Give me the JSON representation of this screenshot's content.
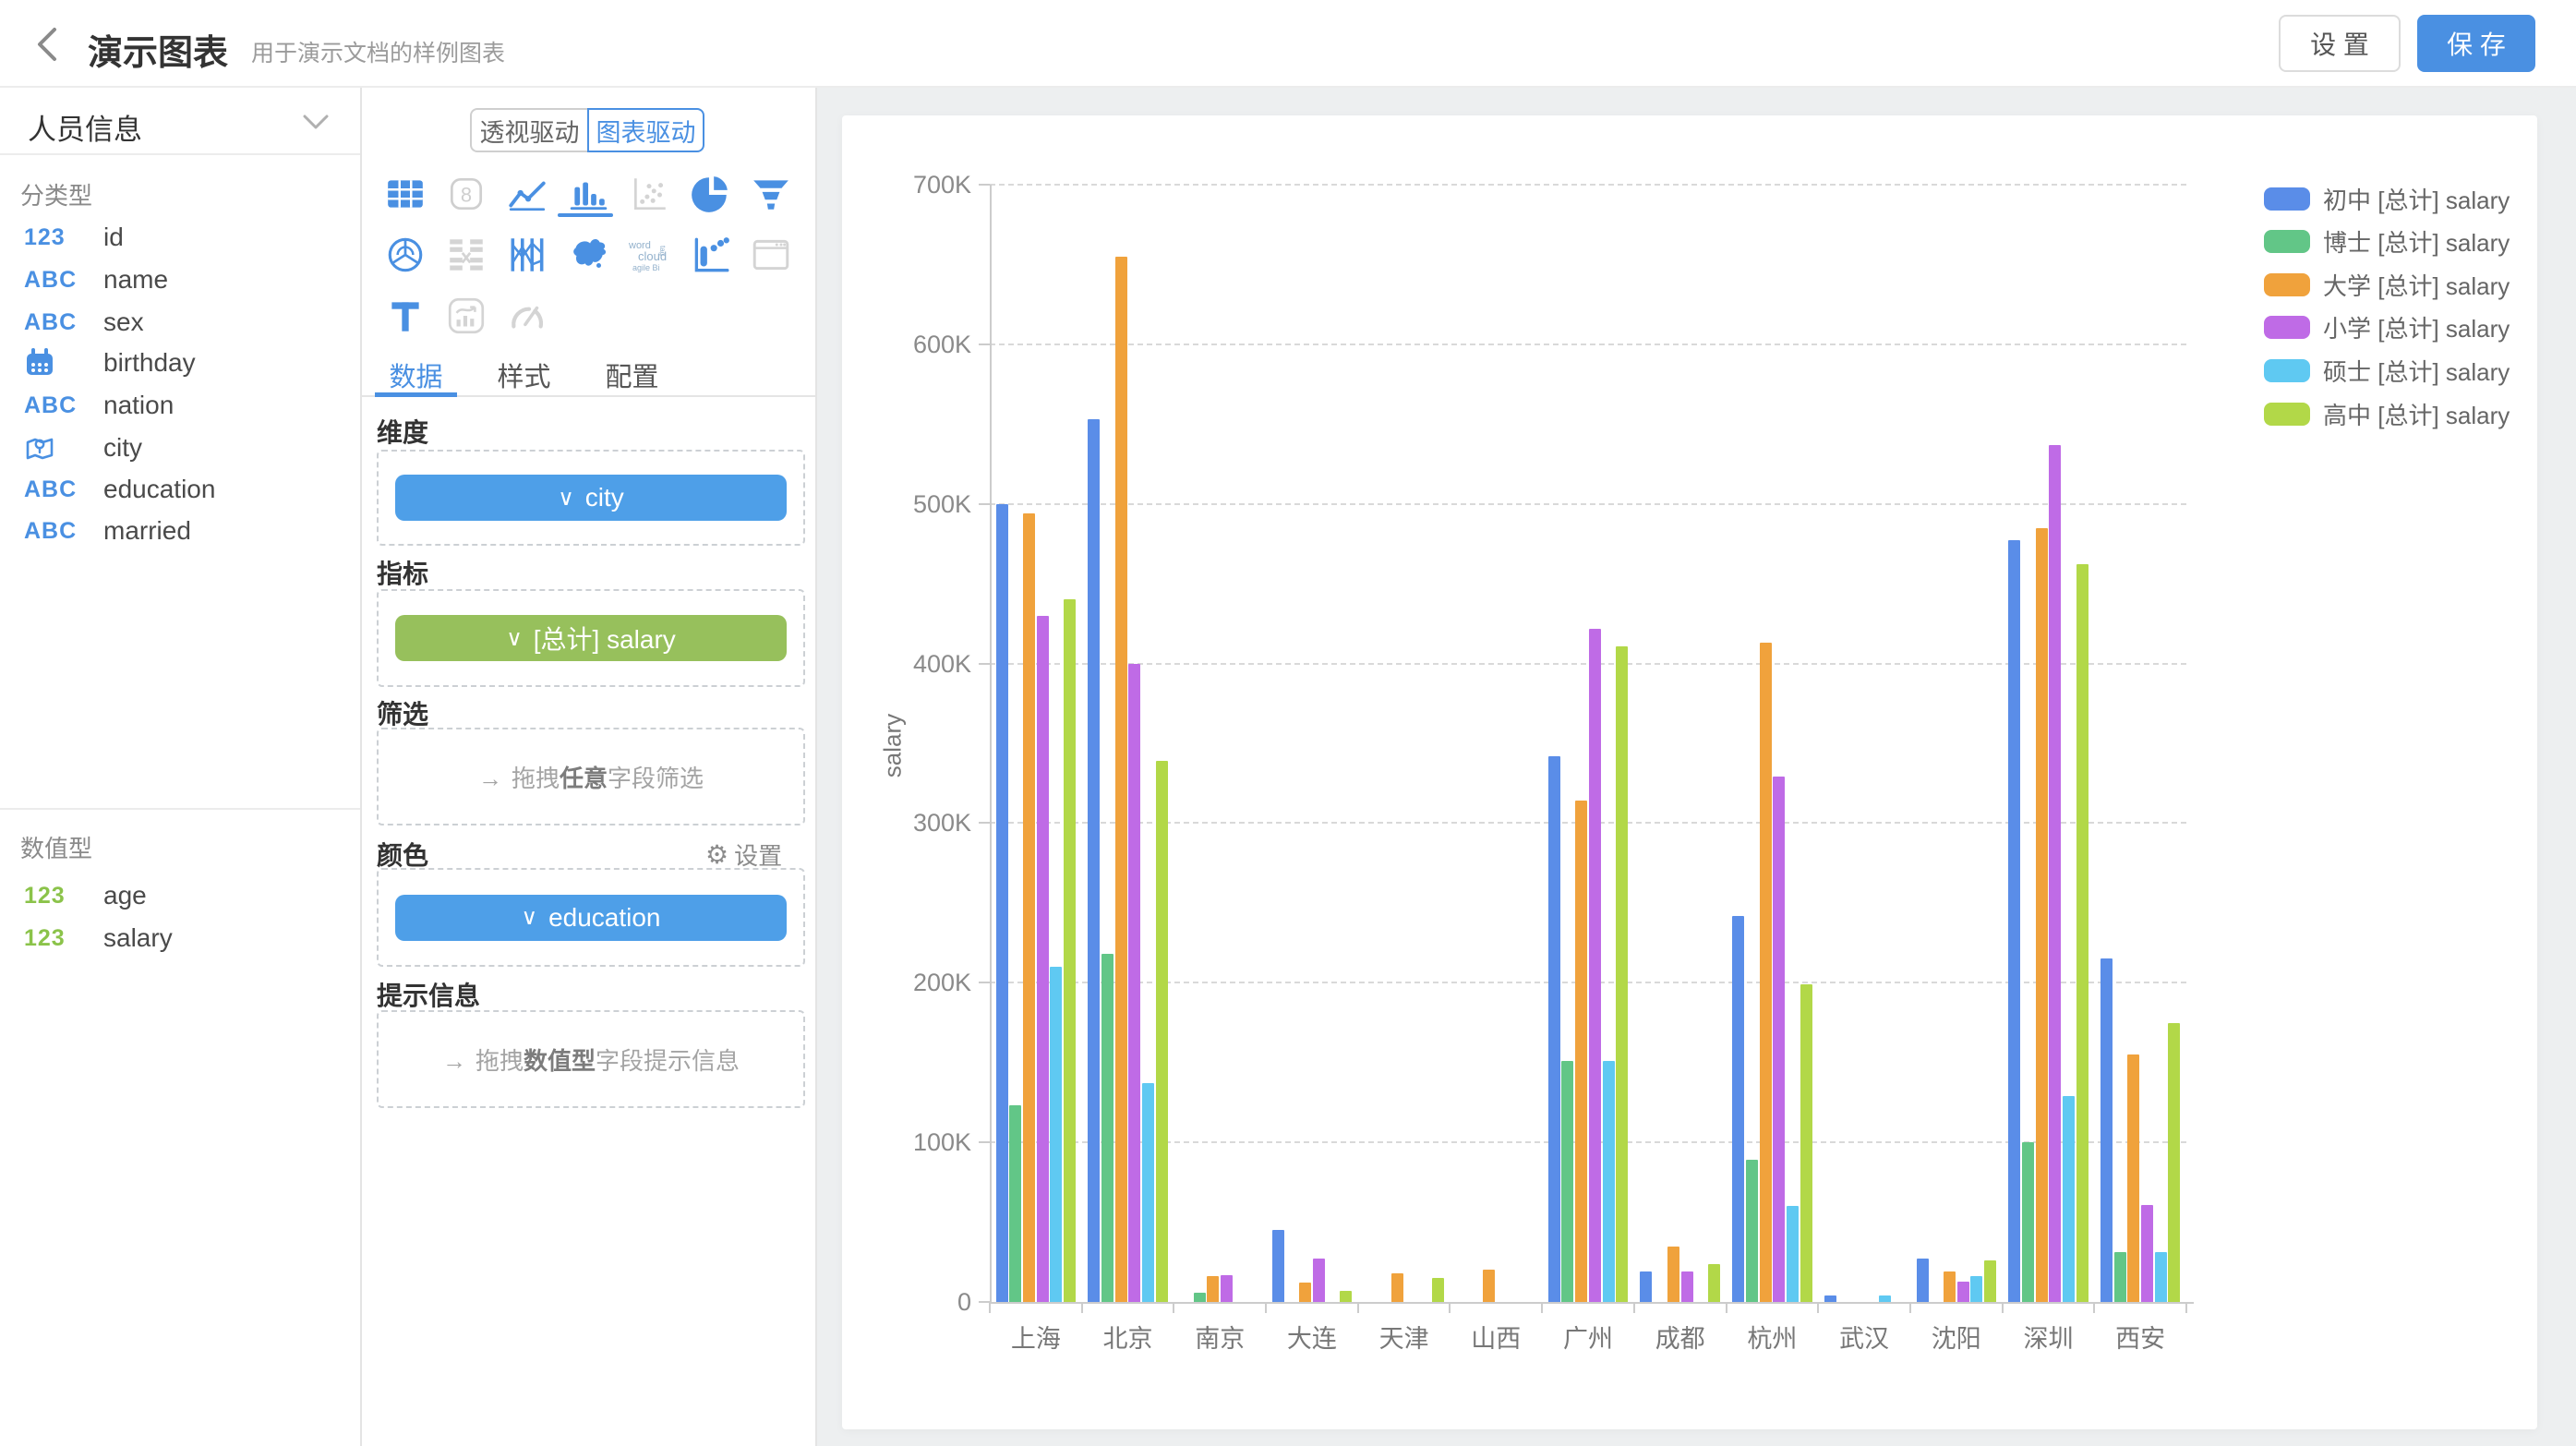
{
  "topbar": {
    "title": "演示图表",
    "subtitle": "用于演示文档的样例图表",
    "settings_label": "设 置",
    "save_label": "保 存"
  },
  "sidebar": {
    "dataset_name": "人员信息",
    "categorical_section": "分类型",
    "numeric_section": "数值型",
    "categorical_fields": [
      {
        "name": "id",
        "icon": "123"
      },
      {
        "name": "name",
        "icon": "ABC"
      },
      {
        "name": "sex",
        "icon": "ABC"
      },
      {
        "name": "birthday",
        "icon": "calendar"
      },
      {
        "name": "nation",
        "icon": "ABC"
      },
      {
        "name": "city",
        "icon": "map"
      },
      {
        "name": "education",
        "icon": "ABC"
      },
      {
        "name": "married",
        "icon": "ABC"
      }
    ],
    "numeric_fields": [
      {
        "name": "age",
        "icon": "123"
      },
      {
        "name": "salary",
        "icon": "123"
      }
    ]
  },
  "panel": {
    "mode_pivot": "透视驱动",
    "mode_chart": "图表驱动",
    "tabs": {
      "data": "数据",
      "style": "样式",
      "config": "配置"
    },
    "sections": {
      "dimension_label": "维度",
      "dimension_chip": "city",
      "metric_label": "指标",
      "metric_chip": "[总计] salary",
      "filter_label": "筛选",
      "filter_placeholder": {
        "prefix": "拖拽",
        "bold": "任意",
        "suffix": "字段筛选"
      },
      "color_label": "颜色",
      "color_settings": "设置",
      "color_chip": "education",
      "tooltip_label": "提示信息",
      "tooltip_placeholder": {
        "prefix": "拖拽",
        "bold": "数值型",
        "suffix": "字段提示信息"
      }
    },
    "wordcloud_icon_text": {
      "l1": "word",
      "l2": "cloud",
      "l3": "agile Bi",
      "tag": "tag"
    }
  },
  "chart_data": {
    "type": "bar",
    "title": "",
    "xlabel": "",
    "ylabel": "salary",
    "unit": "K (values_k are thousands)",
    "ylim": [
      0,
      700
    ],
    "yticks": [
      0,
      100,
      200,
      300,
      400,
      500,
      600,
      700
    ],
    "ytick_labels": [
      "0",
      "100K",
      "200K",
      "300K",
      "400K",
      "500K",
      "600K",
      "700K"
    ],
    "grid": "horizontal-dashed",
    "legend_position": "right",
    "categories": [
      "上海",
      "北京",
      "南京",
      "大连",
      "天津",
      "山西",
      "广州",
      "成都",
      "杭州",
      "武汉",
      "沈阳",
      "深圳",
      "西安"
    ],
    "series": [
      {
        "name": "初中 [总计] salary",
        "color": "#5a8de8",
        "values_k": [
          500,
          553,
          0,
          45,
          0,
          0,
          342,
          19,
          242,
          4,
          27,
          477,
          215
        ]
      },
      {
        "name": "博士 [总计] salary",
        "color": "#62c687",
        "values_k": [
          123,
          218,
          6,
          0,
          0,
          0,
          151,
          0,
          89,
          0,
          0,
          100,
          31
        ]
      },
      {
        "name": "大学 [总计] salary",
        "color": "#f0a23c",
        "values_k": [
          494,
          655,
          16,
          12,
          18,
          20,
          314,
          35,
          413,
          0,
          19,
          485,
          155
        ]
      },
      {
        "name": "小学 [总计] salary",
        "color": "#bf6be6",
        "values_k": [
          430,
          400,
          17,
          27,
          0,
          0,
          422,
          19,
          329,
          0,
          13,
          537,
          61
        ]
      },
      {
        "name": "硕士 [总计] salary",
        "color": "#5fc9f2",
        "values_k": [
          210,
          137,
          0,
          0,
          0,
          0,
          151,
          0,
          60,
          4,
          16,
          129,
          31
        ]
      },
      {
        "name": "高中 [总计] salary",
        "color": "#b2d848",
        "values_k": [
          440,
          339,
          0,
          7,
          15,
          0,
          411,
          24,
          199,
          0,
          26,
          462,
          175
        ]
      }
    ]
  }
}
